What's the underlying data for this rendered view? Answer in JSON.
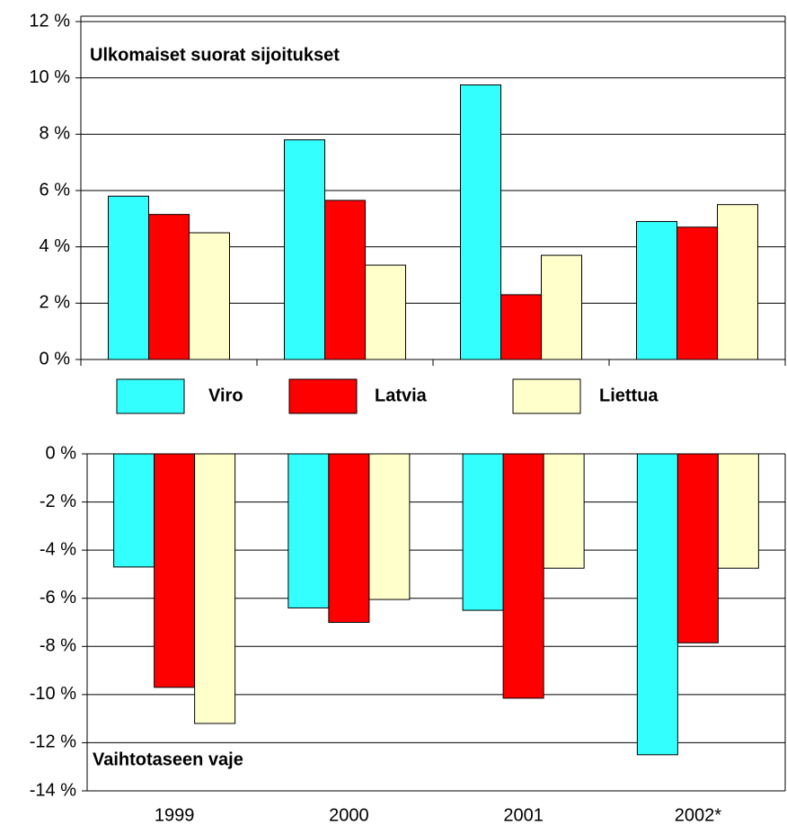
{
  "chart_data": [
    {
      "type": "bar",
      "annotations": [
        "Ulkomaiset suorat sijoitukset"
      ],
      "categories": [
        null,
        null,
        null,
        null
      ],
      "series": [
        {
          "name": "Viro",
          "color": "#33ffff",
          "values": [
            5.8,
            7.8,
            9.75,
            4.9
          ]
        },
        {
          "name": "Latvia",
          "color": "#ff0000",
          "values": [
            5.15,
            5.65,
            2.3,
            4.7
          ]
        },
        {
          "name": "Liettua",
          "color": "#ffffcc",
          "values": [
            4.5,
            3.35,
            3.7,
            5.5
          ]
        }
      ],
      "ylim": [
        0,
        12
      ],
      "yticks": [
        {
          "value": 0,
          "label": "0 %"
        },
        {
          "value": 2,
          "label": "2 %"
        },
        {
          "value": 4,
          "label": "4 %"
        },
        {
          "value": 6,
          "label": "6 %"
        },
        {
          "value": 8,
          "label": "8 %"
        },
        {
          "value": 10,
          "label": "10 %"
        },
        {
          "value": 12,
          "label": "12 %"
        }
      ],
      "grid": true,
      "legend": "bottom"
    },
    {
      "type": "bar",
      "annotations": [
        "Vaihtotaseen vaje"
      ],
      "categories": [
        "1999",
        "2000",
        "2001",
        "2002*"
      ],
      "series": [
        {
          "color": "#33ffff",
          "values": [
            -4.7,
            -6.4,
            -6.5,
            -12.5
          ]
        },
        {
          "color": "#ff0000",
          "values": [
            -9.7,
            -7.0,
            -10.15,
            -7.85
          ]
        },
        {
          "color": "#ffffcc",
          "values": [
            -11.2,
            -6.05,
            -4.75,
            -4.75
          ]
        }
      ],
      "ylim": [
        -14,
        0
      ],
      "yticks": [
        {
          "value": -14,
          "label": "-14 %"
        },
        {
          "value": -12,
          "label": "-12 %"
        },
        {
          "value": -10,
          "label": "-10 %"
        },
        {
          "value": -8,
          "label": "-8 %"
        },
        {
          "value": -6,
          "label": "-6 %"
        },
        {
          "value": -4,
          "label": "-4 %"
        },
        {
          "value": -2,
          "label": "-2 %"
        },
        {
          "value": 0,
          "label": "0 %"
        }
      ],
      "grid": true
    }
  ]
}
